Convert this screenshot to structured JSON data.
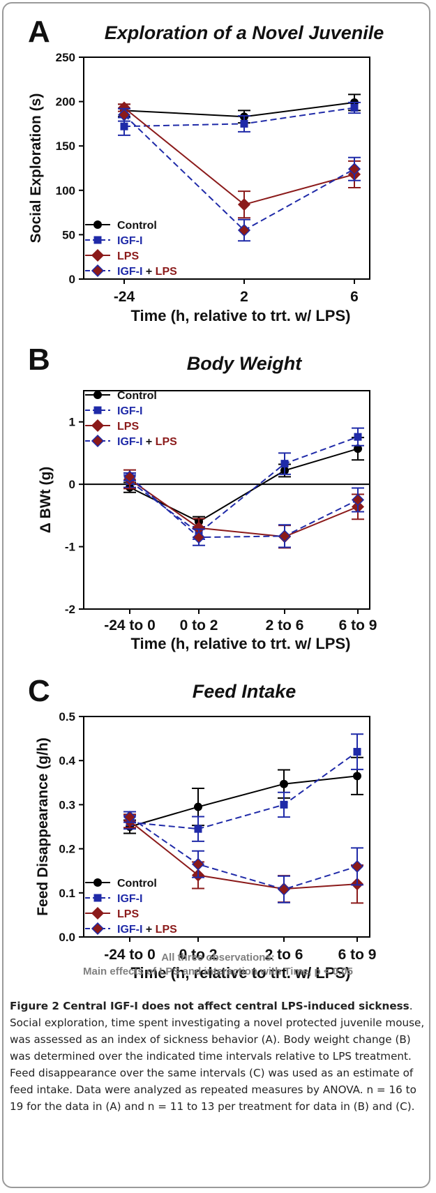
{
  "chart_data": [
    {
      "type": "line",
      "panel_letter": "A",
      "title": "Exploration of a Novel Juvenile",
      "xlabel": "Time (h, relative to trt. w/ LPS)",
      "ylabel": "Social Exploration (s)",
      "categories": [
        "-24",
        "2",
        "6"
      ],
      "ylim": [
        0,
        250
      ],
      "yticks": [
        "0",
        "50",
        "100",
        "150",
        "200",
        "250"
      ],
      "zero_line": false,
      "legend": "bottom-left",
      "series": [
        {
          "name": "Control",
          "values": [
            190,
            183,
            199
          ],
          "errors": [
            7,
            7,
            9
          ]
        },
        {
          "name": "IGF-I",
          "values": [
            172,
            175,
            193
          ],
          "errors": [
            10,
            9,
            6
          ]
        },
        {
          "name": "LPS",
          "values": [
            193,
            84,
            118
          ],
          "errors": [
            4,
            15,
            15
          ]
        },
        {
          "name": "IGF-I + LPS",
          "values": [
            185,
            55,
            124
          ],
          "errors": [
            7,
            12,
            13
          ]
        }
      ]
    },
    {
      "type": "line",
      "panel_letter": "B",
      "title": "Body Weight",
      "xlabel": "Time (h, relative to trt. w/ LPS)",
      "ylabel": "Δ BWt (g)",
      "categories": [
        "-24 to 0",
        "0 to 2",
        "2 to 6",
        "6 to 9"
      ],
      "ylim": [
        -2,
        1.5
      ],
      "yticks": [
        "-2",
        "-1",
        "0",
        "1"
      ],
      "zero_line": true,
      "legend": "top-left",
      "series": [
        {
          "name": "Control",
          "values": [
            -0.05,
            -0.6,
            0.22,
            0.57
          ],
          "errors": [
            0.08,
            0.08,
            0.1,
            0.18
          ]
        },
        {
          "name": "IGF-I",
          "values": [
            0.05,
            -0.78,
            0.33,
            0.76
          ],
          "errors": [
            0.1,
            0.1,
            0.17,
            0.14
          ]
        },
        {
          "name": "LPS",
          "values": [
            0.08,
            -0.7,
            -0.84,
            -0.36
          ],
          "errors": [
            0.15,
            0.15,
            0.18,
            0.2
          ]
        },
        {
          "name": "IGF-I + LPS",
          "values": [
            0.12,
            -0.85,
            -0.83,
            -0.25
          ],
          "errors": [
            0.06,
            0.13,
            0.18,
            0.19
          ]
        }
      ]
    },
    {
      "type": "line",
      "panel_letter": "C",
      "title": "Feed Intake",
      "xlabel": "Time (h, relative to trt. w/ LPS)",
      "ylabel": "Feed Disappearance (g/h)",
      "categories": [
        "-24 to 0",
        "0 to 2",
        "2 to 6",
        "6 to 9"
      ],
      "ylim": [
        0,
        0.5
      ],
      "yticks": [
        "0.0",
        "0.1",
        "0.2",
        "0.3",
        "0.4",
        "0.5"
      ],
      "zero_line": false,
      "legend": "bottom-left",
      "series": [
        {
          "name": "Control",
          "values": [
            0.25,
            0.295,
            0.347,
            0.365
          ],
          "errors": [
            0.015,
            0.042,
            0.032,
            0.042
          ]
        },
        {
          "name": "IGF-I",
          "values": [
            0.26,
            0.245,
            0.3,
            0.42
          ],
          "errors": [
            0.015,
            0.028,
            0.028,
            0.04
          ]
        },
        {
          "name": "LPS",
          "values": [
            0.263,
            0.14,
            0.109,
            0.12
          ],
          "errors": [
            0.015,
            0.03,
            0.03,
            0.043
          ]
        },
        {
          "name": "IGF-I + LPS",
          "values": [
            0.272,
            0.165,
            0.108,
            0.16
          ],
          "errors": [
            0.012,
            0.03,
            0.03,
            0.042
          ]
        }
      ]
    }
  ],
  "legend_labels": {
    "control": "Control",
    "igf": "IGF-I",
    "lps": "LPS",
    "combo_prefix": "IGF-I",
    "combo_plus": " + ",
    "combo_suffix": "LPS"
  },
  "colors": {
    "control": "#000000",
    "igf": "#1f2aa8",
    "lps": "#8b1a1a",
    "note": "#808080"
  },
  "note": {
    "line1": "All three observations:",
    "line2": "Main effects of LPS and interaction with Time, p < 0.05"
  },
  "caption": {
    "title": "Figure 2 Central IGF-I does not affect central LPS-induced sickness",
    "body": ". Social exploration, time spent investigating a novel protected juvenile mouse, was assessed as an index of sickness behavior (A). Body weight change (B) was determined over the indicated time intervals relative to LPS treatment. Feed disappearance over the same intervals (C) was used as an estimate of feed intake. Data were analyzed as repeated measures by ANOVA. n = 16 to 19 for the data in (A) and n = 11 to 13 per treatment for data in (B) and (C)."
  }
}
